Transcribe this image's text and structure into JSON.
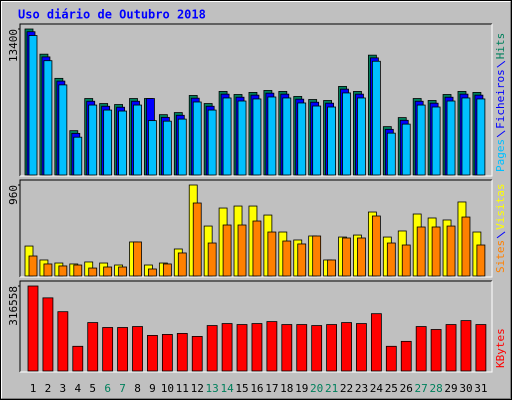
{
  "chart_data": [
    {
      "type": "bar",
      "title": "Uso diário de Outubro 2018",
      "ylim": [
        0,
        13400
      ],
      "yticks": [
        13400
      ],
      "series": [
        {
          "name": "Hits",
          "color": "#00805c",
          "values": [
            13400,
            11090,
            8870,
            4070,
            7020,
            6560,
            6470,
            7020,
            7020,
            5540,
            5730,
            7300,
            6560,
            7670,
            7390,
            7580,
            7760,
            7670,
            7210,
            6930,
            6840,
            8130,
            7670,
            11000,
            4440,
            5270,
            7020,
            6840,
            7390,
            7670,
            7580
          ]
        },
        {
          "name": "Ficheiros",
          "color": "#0000ff",
          "values": [
            13150,
            10840,
            8620,
            3820,
            6770,
            6310,
            6220,
            6770,
            7020,
            5290,
            5480,
            7050,
            6310,
            7420,
            7140,
            7330,
            7510,
            7420,
            6960,
            6680,
            6590,
            7880,
            7420,
            10750,
            4190,
            5020,
            6770,
            6590,
            7140,
            7420,
            7330
          ]
        },
        {
          "name": "Pages",
          "color": "#00c0ff",
          "values": [
            12800,
            10490,
            8270,
            3470,
            6420,
            5960,
            5870,
            6420,
            4990,
            4940,
            5130,
            6700,
            5960,
            7070,
            6790,
            6980,
            7160,
            7070,
            6610,
            6330,
            6240,
            7530,
            7070,
            10440,
            3840,
            4670,
            6420,
            6240,
            6790,
            7070,
            6980
          ]
        }
      ]
    },
    {
      "type": "bar",
      "ylim": [
        0,
        960
      ],
      "yticks": [
        960
      ],
      "series": [
        {
          "name": "Visitas",
          "color": "#ffff00",
          "values": [
            316,
            169,
            137,
            127,
            148,
            137,
            116,
            359,
            116,
            137,
            285,
            960,
            527,
            717,
            738,
            738,
            643,
            464,
            380,
            422,
            169,
            411,
            432,
            675,
            411,
            475,
            654,
            612,
            591,
            781,
            464
          ]
        },
        {
          "name": "Sites",
          "color": "#ff8000",
          "values": [
            211,
            127,
            106,
            116,
            84,
            95,
            95,
            359,
            74,
            127,
            243,
            770,
            348,
            538,
            538,
            580,
            464,
            369,
            338,
            422,
            169,
            401,
            401,
            633,
            348,
            327,
            517,
            517,
            527,
            622,
            327
          ]
        }
      ]
    },
    {
      "type": "bar",
      "ylim": [
        0,
        316558
      ],
      "yticks": [
        316558
      ],
      "categories": [
        "1",
        "2",
        "3",
        "4",
        "5",
        "6",
        "7",
        "8",
        "9",
        "10",
        "11",
        "12",
        "13",
        "14",
        "15",
        "16",
        "17",
        "18",
        "19",
        "20",
        "21",
        "22",
        "23",
        "24",
        "25",
        "26",
        "27",
        "28",
        "29",
        "30",
        "31"
      ],
      "category_colors": [
        "#000000",
        "#000000",
        "#000000",
        "#000000",
        "#000000",
        "#00805c",
        "#00805c",
        "#000000",
        "#000000",
        "#000000",
        "#000000",
        "#000000",
        "#00805c",
        "#00805c",
        "#000000",
        "#000000",
        "#000000",
        "#000000",
        "#000000",
        "#00805c",
        "#00805c",
        "#000000",
        "#000000",
        "#000000",
        "#000000",
        "#000000",
        "#00805c",
        "#00805c",
        "#000000",
        "#000000",
        "#000000"
      ],
      "series": [
        {
          "name": "KBytes",
          "color": "#ff0000",
          "values": [
            316558,
            272400,
            220900,
            92000,
            180400,
            162000,
            162000,
            165600,
            132500,
            136200,
            139900,
            128800,
            169300,
            176700,
            173000,
            176700,
            184000,
            173000,
            173000,
            169300,
            173000,
            180400,
            176700,
            213500,
            92000,
            110400,
            165600,
            154600,
            173000,
            187700,
            173000
          ]
        }
      ]
    }
  ]
}
